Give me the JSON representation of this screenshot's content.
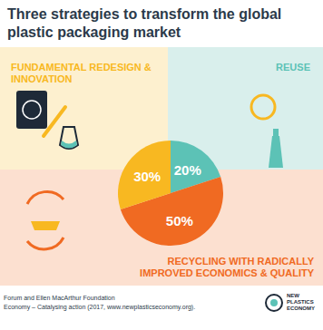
{
  "chart_data": {
    "type": "pie",
    "title": "Three strategies to transform the global plastic packaging market",
    "categories": [
      "REUSE",
      "RECYCLING WITH RADICALLY IMPROVED ECONOMICS & QUALITY",
      "FUNDAMENTAL REDESIGN & INNOVATION"
    ],
    "values": [
      20,
      50,
      30
    ],
    "value_labels": [
      "20%",
      "50%",
      "30%"
    ],
    "colors": [
      "#5cc2b6",
      "#f06a22",
      "#f8b821"
    ],
    "data_labels": true,
    "source": [
      "Forum and Ellen MacArthur Foundation",
      "Economy – Catalysing action (2017, www.newplasticseconomy.org)."
    ],
    "logo": "NEW PLASTICS ECONOMY"
  }
}
